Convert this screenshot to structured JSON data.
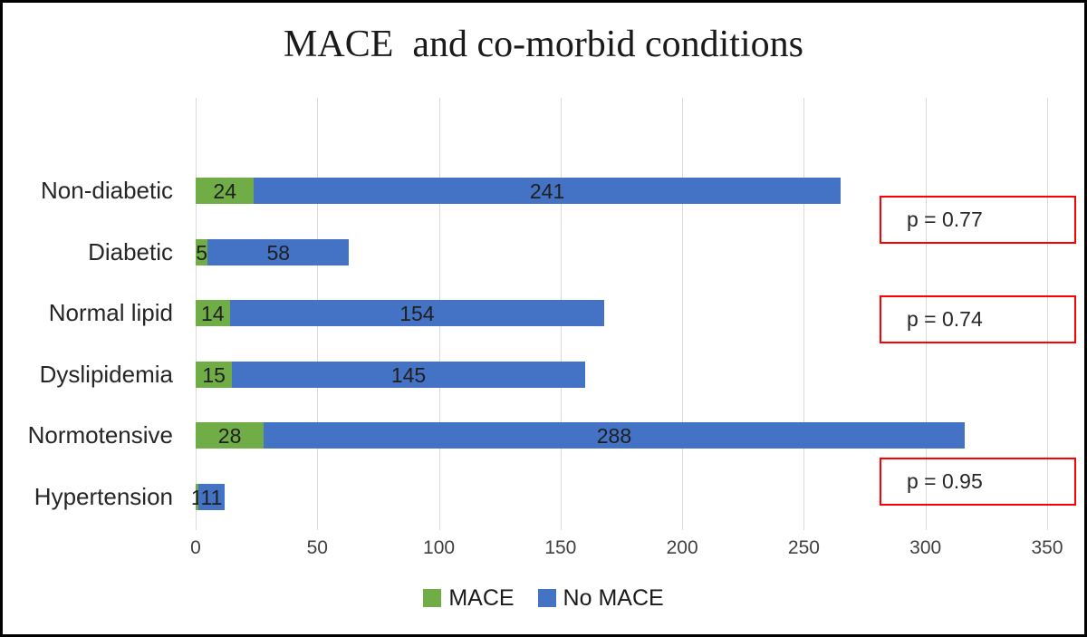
{
  "title": "MACE  and co-morbid conditions",
  "chart_data": {
    "type": "bar",
    "orientation": "horizontal",
    "stacked": true,
    "title": "MACE  and co-morbid conditions",
    "categories": [
      "Non-diabetic",
      "Diabetic",
      "Normal lipid",
      "Dyslipidemia",
      "Normotensive",
      "Hypertension"
    ],
    "series": [
      {
        "name": "MACE",
        "color": "#70ad47",
        "values": [
          24,
          5,
          14,
          15,
          28,
          1
        ]
      },
      {
        "name": "No MACE",
        "color": "#4472c4",
        "values": [
          241,
          58,
          154,
          145,
          288,
          11
        ]
      }
    ],
    "xlim": [
      0,
      350
    ],
    "x_ticks": [
      0,
      50,
      100,
      150,
      200,
      250,
      300,
      350
    ],
    "grid": "vertical-only",
    "legend_position": "bottom",
    "data_labels": "inside-center",
    "annotations": [
      {
        "label": "p = 0.77",
        "applies_to": [
          "Non-diabetic",
          "Diabetic"
        ]
      },
      {
        "label": "p = 0.74",
        "applies_to": [
          "Normal lipid",
          "Dyslipidemia"
        ]
      },
      {
        "label": "p = 0.95",
        "applies_to": [
          "Normotensive",
          "Hypertension"
        ]
      }
    ]
  },
  "legend": {
    "items": [
      {
        "label": "MACE",
        "color": "#70ad47"
      },
      {
        "label": "No MACE",
        "color": "#4472c4"
      }
    ]
  },
  "colors": {
    "mace_green": "#70ad47",
    "no_mace_blue": "#4472c4",
    "gridline": "#d9d9d9",
    "annotation_border": "#ff0000",
    "frame_border": "#000000",
    "background": "#ffffff"
  }
}
